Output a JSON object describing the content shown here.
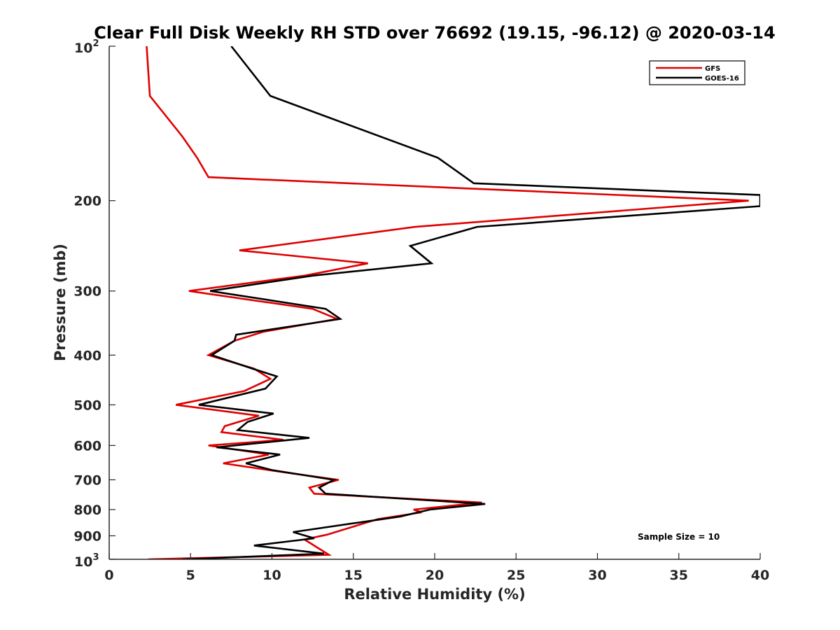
{
  "chart_data": {
    "type": "line",
    "title": "Clear Full Disk Weekly RH STD over 76692 (19.15, -96.12) @ 2020-03-14",
    "xlabel": "Relative Humidity (%)",
    "ylabel": "Pressure (mb)",
    "xlim": [
      0,
      40
    ],
    "ylim": [
      100,
      1000
    ],
    "yscale": "log",
    "y_reversed": true,
    "xticks": [
      0,
      5,
      10,
      15,
      20,
      25,
      30,
      35,
      40
    ],
    "xtick_labels": [
      "0",
      "5",
      "10",
      "15",
      "20",
      "25",
      "30",
      "35",
      "40"
    ],
    "yticks": [
      200,
      300,
      400,
      500,
      600,
      700,
      800,
      900
    ],
    "ytick_labels": [
      "200",
      "300",
      "400",
      "500",
      "600",
      "700",
      "800",
      "900"
    ],
    "ytick_top": {
      "base": "10",
      "exp": "2"
    },
    "ytick_bottom": {
      "base": "10",
      "exp": "3"
    },
    "grid": false,
    "legend_position": "top-right",
    "annotation": "Sample Size = 10",
    "series": [
      {
        "name": "GFS",
        "color": "#e00000",
        "points": [
          [
            2.3,
            100
          ],
          [
            2.5,
            125
          ],
          [
            4.5,
            150
          ],
          [
            5.4,
            165
          ],
          [
            6.1,
            180
          ],
          [
            39.3,
            200
          ],
          [
            18.8,
            225
          ],
          [
            8.0,
            250
          ],
          [
            15.9,
            265
          ],
          [
            12.0,
            280
          ],
          [
            4.9,
            300
          ],
          [
            12.5,
            325
          ],
          [
            14.0,
            340
          ],
          [
            9.5,
            360
          ],
          [
            7.7,
            375
          ],
          [
            6.1,
            400
          ],
          [
            8.9,
            425
          ],
          [
            9.9,
            445
          ],
          [
            8.3,
            470
          ],
          [
            4.1,
            500
          ],
          [
            9.2,
            525
          ],
          [
            7.1,
            550
          ],
          [
            6.9,
            565
          ],
          [
            10.7,
            585
          ],
          [
            6.1,
            600
          ],
          [
            9.8,
            625
          ],
          [
            7.0,
            650
          ],
          [
            11.2,
            680
          ],
          [
            14.1,
            700
          ],
          [
            12.3,
            725
          ],
          [
            12.6,
            745
          ],
          [
            22.9,
            775
          ],
          [
            18.7,
            800
          ],
          [
            19.2,
            810
          ],
          [
            16.5,
            835
          ],
          [
            13.4,
            895
          ],
          [
            12.0,
            915
          ],
          [
            13.5,
            980
          ],
          [
            2.4,
            1000
          ]
        ]
      },
      {
        "name": "GOES-16",
        "color": "#000000",
        "points": [
          [
            7.5,
            100
          ],
          [
            9.9,
            125
          ],
          [
            20.2,
            165
          ],
          [
            22.4,
            185
          ],
          [
            40.0,
            195
          ],
          [
            40.0,
            205
          ],
          [
            22.6,
            225
          ],
          [
            18.5,
            245
          ],
          [
            19.8,
            265
          ],
          [
            12.5,
            280
          ],
          [
            6.2,
            300
          ],
          [
            13.3,
            325
          ],
          [
            14.2,
            340
          ],
          [
            7.8,
            365
          ],
          [
            7.7,
            375
          ],
          [
            6.3,
            400
          ],
          [
            8.8,
            425
          ],
          [
            10.3,
            440
          ],
          [
            9.6,
            465
          ],
          [
            5.5,
            500
          ],
          [
            10.1,
            520
          ],
          [
            8.5,
            540
          ],
          [
            7.9,
            560
          ],
          [
            12.3,
            580
          ],
          [
            6.6,
            605
          ],
          [
            10.5,
            625
          ],
          [
            8.4,
            650
          ],
          [
            10.0,
            670
          ],
          [
            13.8,
            700
          ],
          [
            12.9,
            725
          ],
          [
            13.3,
            745
          ],
          [
            23.1,
            780
          ],
          [
            19.7,
            800
          ],
          [
            17.9,
            825
          ],
          [
            11.3,
            885
          ],
          [
            12.6,
            910
          ],
          [
            8.9,
            940
          ],
          [
            13.2,
            975
          ],
          [
            4.5,
            1000
          ]
        ]
      }
    ]
  }
}
